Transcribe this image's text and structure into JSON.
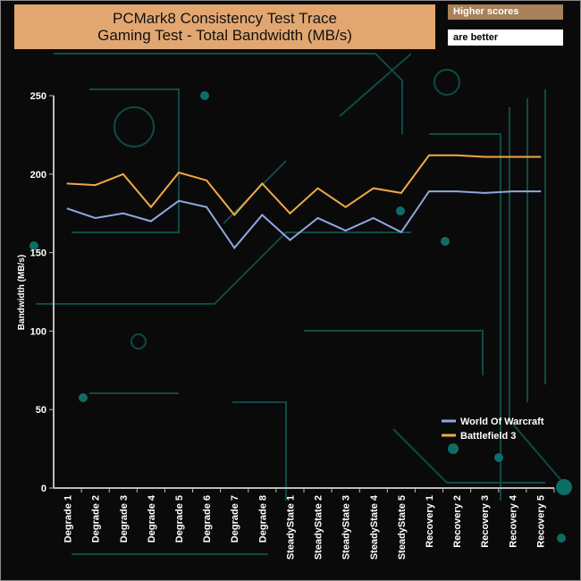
{
  "header": {
    "title_line1": "PCMark8 Consistency Test Trace",
    "title_line2": "Gaming Test - Total Bandwidth (MB/s)",
    "note1": "Higher scores",
    "note2": "are better"
  },
  "chart_data": {
    "type": "line",
    "title": "PCMark8 Consistency Test Trace Gaming Test - Total Bandwidth (MB/s)",
    "xlabel": "",
    "ylabel": "Bandwidth (MB/s)",
    "ylim": [
      0,
      250
    ],
    "yticks": [
      0,
      50,
      100,
      150,
      200,
      250
    ],
    "categories": [
      "Degrade 1",
      "Degrade 2",
      "Degrade 3",
      "Degrade 4",
      "Degrade 5",
      "Degrade 6",
      "Degrade 7",
      "Degrade 8",
      "SteadyState 1",
      "SteadyState 2",
      "SteadyState 3",
      "SteadyState 4",
      "SteadyState 5",
      "Recovery 1",
      "Recovery 2",
      "Recovery 3",
      "Recovery 4",
      "Recovery 5"
    ],
    "series": [
      {
        "name": "World Of Warcraft",
        "color": "#8ea8e0",
        "values": [
          178,
          172,
          175,
          170,
          183,
          179,
          153,
          174,
          158,
          172,
          164,
          172,
          163,
          189,
          189,
          188,
          189,
          189
        ]
      },
      {
        "name": "Battlefield 3",
        "color": "#f0a848",
        "values": [
          194,
          193,
          200,
          179,
          201,
          196,
          174,
          194,
          175,
          191,
          179,
          191,
          188,
          212,
          212,
          211,
          211,
          211
        ]
      }
    ],
    "legend": "bottom-right",
    "grid": false
  }
}
